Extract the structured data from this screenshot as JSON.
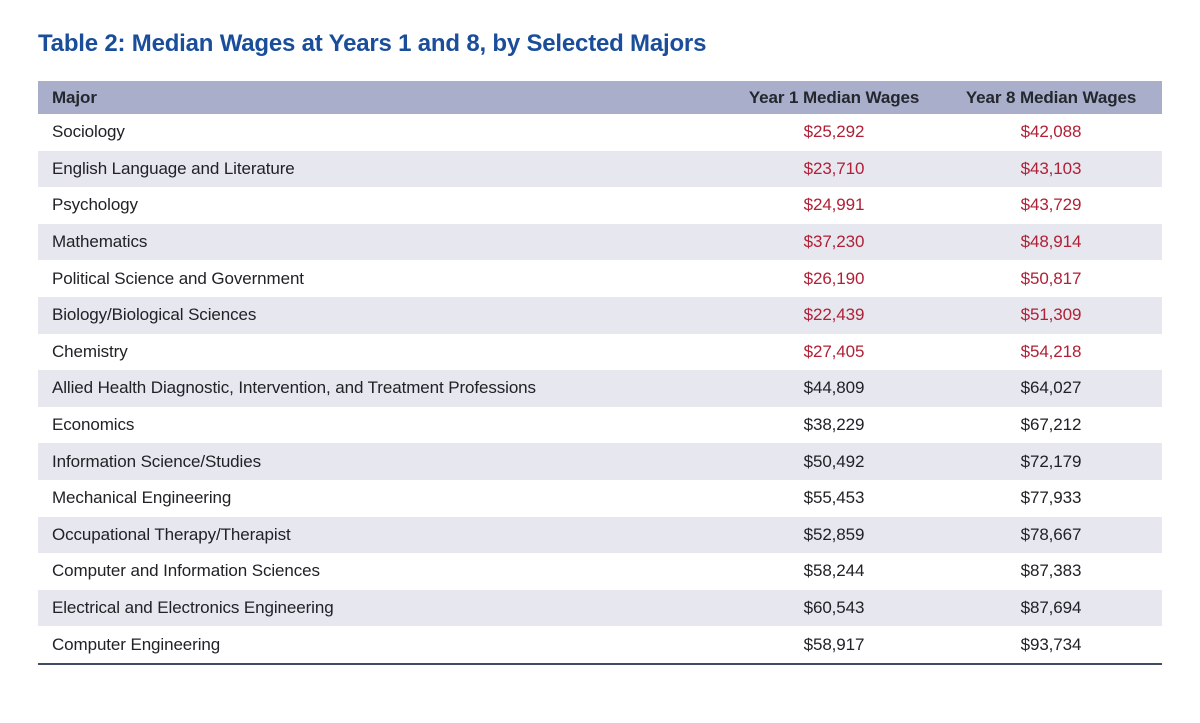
{
  "title": "Table 2: Median Wages at Years 1 and 8, by Selected Majors",
  "colors": {
    "title_text": "#1A4E9B",
    "header_bg": "#A9AFCB",
    "header_text": "#24272E",
    "body_text": "#212226",
    "alt_row_bg": "#E6E7EF",
    "red_value": "#B02036",
    "table_bottom_border": "#3E4C66"
  },
  "table": {
    "columns": [
      "Major",
      "Year 1 Median Wages",
      "Year 8 Median Wages"
    ],
    "rows": [
      {
        "major": "Sociology",
        "year1": "$25,292",
        "year8": "$42,088",
        "red_values": true
      },
      {
        "major": "English Language and Literature",
        "year1": "$23,710",
        "year8": "$43,103",
        "red_values": true
      },
      {
        "major": "Psychology",
        "year1": "$24,991",
        "year8": "$43,729",
        "red_values": true
      },
      {
        "major": "Mathematics",
        "year1": "$37,230",
        "year8": "$48,914",
        "red_values": true
      },
      {
        "major": "Political Science and Government",
        "year1": "$26,190",
        "year8": "$50,817",
        "red_values": true
      },
      {
        "major": "Biology/Biological Sciences",
        "year1": "$22,439",
        "year8": "$51,309",
        "red_values": true
      },
      {
        "major": "Chemistry",
        "year1": "$27,405",
        "year8": "$54,218",
        "red_values": true
      },
      {
        "major": "Allied Health Diagnostic, Intervention, and Treatment Professions",
        "year1": "$44,809",
        "year8": "$64,027",
        "red_values": false
      },
      {
        "major": "Economics",
        "year1": "$38,229",
        "year8": "$67,212",
        "red_values": false
      },
      {
        "major": "Information Science/Studies",
        "year1": "$50,492",
        "year8": "$72,179",
        "red_values": false
      },
      {
        "major": "Mechanical Engineering",
        "year1": "$55,453",
        "year8": "$77,933",
        "red_values": false
      },
      {
        "major": "Occupational Therapy/Therapist",
        "year1": "$52,859",
        "year8": "$78,667",
        "red_values": false
      },
      {
        "major": "Computer and Information Sciences",
        "year1": "$58,244",
        "year8": "$87,383",
        "red_values": false
      },
      {
        "major": "Electrical and Electronics Engineering",
        "year1": "$60,543",
        "year8": "$87,694",
        "red_values": false
      },
      {
        "major": "Computer Engineering",
        "year1": "$58,917",
        "year8": "$93,734",
        "red_values": false
      }
    ]
  }
}
